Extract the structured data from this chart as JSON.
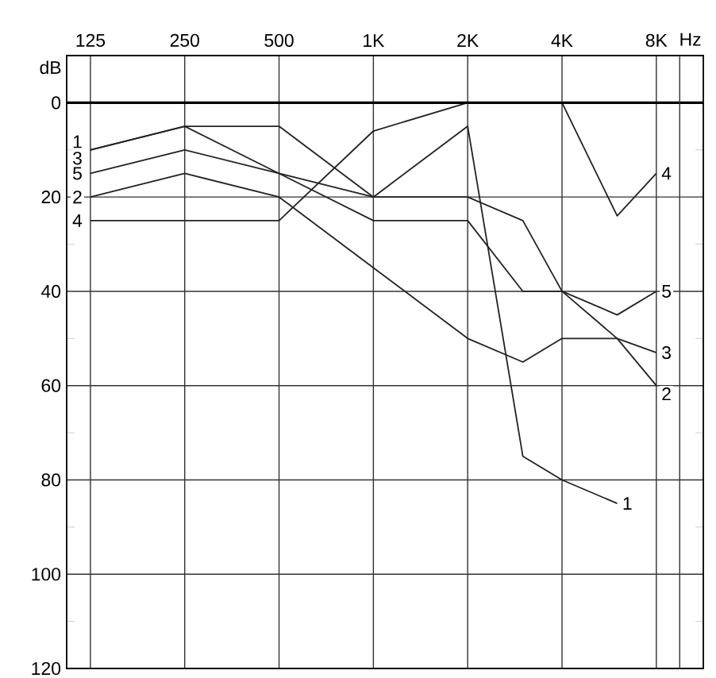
{
  "chart_data": {
    "type": "line",
    "xlabel": "Hz",
    "ylabel": "dB",
    "log": "x",
    "xlim": [
      105,
      11300
    ],
    "ylim": [
      120,
      -10
    ],
    "xticks": [
      125,
      250,
      500,
      {
        "value": 1000,
        "label": "1K"
      },
      {
        "value": 2000,
        "label": "2K"
      },
      {
        "value": 4000,
        "label": "4K"
      },
      {
        "value": 8000,
        "label": "8K"
      }
    ],
    "yticks": [
      0,
      {
        "value": 10,
        "label": null
      },
      20,
      {
        "value": 30,
        "label": null
      },
      40,
      {
        "value": 50,
        "label": null
      },
      60,
      {
        "value": 70,
        "label": null
      },
      80,
      {
        "value": 90,
        "label": null
      },
      100,
      {
        "value": 110,
        "label": null
      },
      120
    ],
    "grid": true,
    "marker": "none",
    "line_style": "solid",
    "ref_lines": [
      {
        "axis": "y",
        "value": 0
      },
      {
        "axis": "x",
        "value": 9500
      }
    ],
    "series": [
      {
        "name": "1",
        "color": "#222222",
        "x": [
          125,
          250,
          500,
          1000,
          2000,
          3000,
          4000,
          6000
        ],
        "values": [
          10,
          5,
          5,
          20,
          5,
          75,
          80,
          85
        ]
      },
      {
        "name": "2",
        "color": "#222222",
        "x": [
          125,
          250,
          500,
          1000,
          2000,
          3000,
          4000,
          6000,
          8000
        ],
        "values": [
          20,
          15,
          20,
          35,
          50,
          55,
          50,
          50,
          60
        ]
      },
      {
        "name": "3",
        "color": "#222222",
        "x": [
          125,
          250,
          500,
          1000,
          2000,
          3000,
          4000,
          6000,
          8000
        ],
        "values": [
          10,
          5,
          15,
          25,
          25,
          40,
          40,
          50,
          53
        ]
      },
      {
        "name": "4",
        "color": "#222222",
        "x": [
          125,
          250,
          500,
          1000,
          2000,
          4000,
          6000,
          8000
        ],
        "values": [
          25,
          25,
          25,
          6,
          0,
          0,
          24,
          15
        ]
      },
      {
        "name": "5",
        "color": "#222222",
        "x": [
          125,
          250,
          500,
          1000,
          2000,
          3000,
          4000,
          6000,
          8000
        ],
        "values": [
          15,
          10,
          15,
          20,
          20,
          25,
          40,
          45,
          40
        ]
      }
    ]
  }
}
